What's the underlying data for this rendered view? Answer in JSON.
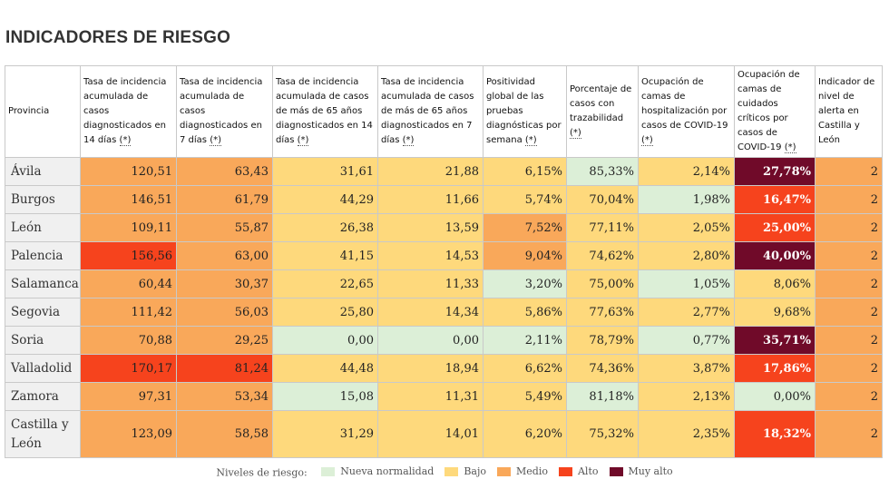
{
  "page": {
    "title": "INDICADORES DE RIESGO"
  },
  "colors": {
    "nueva_normalidad": "#dcefd7",
    "bajo": "#fed97c",
    "medio": "#f9a85a",
    "alto": "#f6431d",
    "muy_alto": "#700a29"
  },
  "table": {
    "columns": [
      {
        "label": "Provincia",
        "asterisk": ""
      },
      {
        "label": "Tasa de incidencia acumulada de casos diagnosticados en 14 días ",
        "asterisk": "(*)"
      },
      {
        "label": "Tasa de incidencia acumulada de casos diagnosticados en 7 días ",
        "asterisk": "(*)"
      },
      {
        "label": "Tasa de incidencia acumulada de casos de más de 65 años diagnosticados en 14 días ",
        "asterisk": "(*)"
      },
      {
        "label": "Tasa de incidencia acumulada de casos de más de 65 años diagnosticados en 7 días ",
        "asterisk": "(*)"
      },
      {
        "label": "Positividad global de las pruebas diagnósticas por semana ",
        "asterisk": "(*)"
      },
      {
        "label": "Porcentaje de casos con trazabilidad ",
        "asterisk": "(*)"
      },
      {
        "label": "Ocupación de camas de hospitalización por casos de COVID-19 ",
        "asterisk": "(*)"
      },
      {
        "label": "Ocupación de camas de cuidados críticos por casos de COVID-19 ",
        "asterisk": "(*)"
      },
      {
        "label": "Indicador de nivel de alerta en Castilla y León",
        "asterisk": ""
      }
    ],
    "rows": [
      {
        "provincia": "Ávila",
        "cells": [
          {
            "v": "120,51",
            "lvl": "medio"
          },
          {
            "v": "63,43",
            "lvl": "medio"
          },
          {
            "v": "31,61",
            "lvl": "bajo"
          },
          {
            "v": "21,88",
            "lvl": "bajo"
          },
          {
            "v": "6,15%",
            "lvl": "bajo"
          },
          {
            "v": "85,33%",
            "lvl": "nueva_normalidad"
          },
          {
            "v": "2,14%",
            "lvl": "bajo"
          },
          {
            "v": "27,78%",
            "lvl": "muy_alto"
          },
          {
            "v": "2",
            "lvl": "medio"
          }
        ]
      },
      {
        "provincia": "Burgos",
        "cells": [
          {
            "v": "146,51",
            "lvl": "medio"
          },
          {
            "v": "61,79",
            "lvl": "medio"
          },
          {
            "v": "44,29",
            "lvl": "bajo"
          },
          {
            "v": "11,66",
            "lvl": "bajo"
          },
          {
            "v": "5,74%",
            "lvl": "bajo"
          },
          {
            "v": "70,04%",
            "lvl": "bajo"
          },
          {
            "v": "1,98%",
            "lvl": "nueva_normalidad"
          },
          {
            "v": "16,47%",
            "lvl": "alto"
          },
          {
            "v": "2",
            "lvl": "medio"
          }
        ]
      },
      {
        "provincia": "León",
        "cells": [
          {
            "v": "109,11",
            "lvl": "medio"
          },
          {
            "v": "55,87",
            "lvl": "medio"
          },
          {
            "v": "26,38",
            "lvl": "bajo"
          },
          {
            "v": "13,59",
            "lvl": "bajo"
          },
          {
            "v": "7,52%",
            "lvl": "medio"
          },
          {
            "v": "77,11%",
            "lvl": "bajo"
          },
          {
            "v": "2,05%",
            "lvl": "bajo"
          },
          {
            "v": "25,00%",
            "lvl": "alto"
          },
          {
            "v": "2",
            "lvl": "medio"
          }
        ]
      },
      {
        "provincia": "Palencia",
        "cells": [
          {
            "v": "156,56",
            "lvl": "alto"
          },
          {
            "v": "63,00",
            "lvl": "medio"
          },
          {
            "v": "41,15",
            "lvl": "bajo"
          },
          {
            "v": "14,53",
            "lvl": "bajo"
          },
          {
            "v": "9,04%",
            "lvl": "medio"
          },
          {
            "v": "74,62%",
            "lvl": "bajo"
          },
          {
            "v": "2,80%",
            "lvl": "bajo"
          },
          {
            "v": "40,00%",
            "lvl": "muy_alto"
          },
          {
            "v": "2",
            "lvl": "medio"
          }
        ]
      },
      {
        "provincia": "Salamanca",
        "cells": [
          {
            "v": "60,44",
            "lvl": "medio"
          },
          {
            "v": "30,37",
            "lvl": "medio"
          },
          {
            "v": "22,65",
            "lvl": "bajo"
          },
          {
            "v": "11,33",
            "lvl": "bajo"
          },
          {
            "v": "3,20%",
            "lvl": "nueva_normalidad"
          },
          {
            "v": "75,00%",
            "lvl": "bajo"
          },
          {
            "v": "1,05%",
            "lvl": "nueva_normalidad"
          },
          {
            "v": "8,06%",
            "lvl": "bajo"
          },
          {
            "v": "2",
            "lvl": "medio"
          }
        ]
      },
      {
        "provincia": "Segovia",
        "cells": [
          {
            "v": "111,42",
            "lvl": "medio"
          },
          {
            "v": "56,03",
            "lvl": "medio"
          },
          {
            "v": "25,80",
            "lvl": "bajo"
          },
          {
            "v": "14,34",
            "lvl": "bajo"
          },
          {
            "v": "5,86%",
            "lvl": "bajo"
          },
          {
            "v": "77,63%",
            "lvl": "bajo"
          },
          {
            "v": "2,77%",
            "lvl": "bajo"
          },
          {
            "v": "9,68%",
            "lvl": "bajo"
          },
          {
            "v": "2",
            "lvl": "medio"
          }
        ]
      },
      {
        "provincia": "Soria",
        "cells": [
          {
            "v": "70,88",
            "lvl": "medio"
          },
          {
            "v": "29,25",
            "lvl": "medio"
          },
          {
            "v": "0,00",
            "lvl": "nueva_normalidad"
          },
          {
            "v": "0,00",
            "lvl": "nueva_normalidad"
          },
          {
            "v": "2,11%",
            "lvl": "nueva_normalidad"
          },
          {
            "v": "78,79%",
            "lvl": "bajo"
          },
          {
            "v": "0,77%",
            "lvl": "nueva_normalidad"
          },
          {
            "v": "35,71%",
            "lvl": "muy_alto"
          },
          {
            "v": "2",
            "lvl": "medio"
          }
        ]
      },
      {
        "provincia": "Valladolid",
        "cells": [
          {
            "v": "170,17",
            "lvl": "alto"
          },
          {
            "v": "81,24",
            "lvl": "alto"
          },
          {
            "v": "44,48",
            "lvl": "bajo"
          },
          {
            "v": "18,94",
            "lvl": "bajo"
          },
          {
            "v": "6,62%",
            "lvl": "bajo"
          },
          {
            "v": "74,36%",
            "lvl": "bajo"
          },
          {
            "v": "3,87%",
            "lvl": "bajo"
          },
          {
            "v": "17,86%",
            "lvl": "alto"
          },
          {
            "v": "2",
            "lvl": "medio"
          }
        ]
      },
      {
        "provincia": "Zamora",
        "cells": [
          {
            "v": "97,31",
            "lvl": "medio"
          },
          {
            "v": "53,34",
            "lvl": "medio"
          },
          {
            "v": "15,08",
            "lvl": "nueva_normalidad"
          },
          {
            "v": "11,31",
            "lvl": "bajo"
          },
          {
            "v": "5,49%",
            "lvl": "bajo"
          },
          {
            "v": "81,18%",
            "lvl": "nueva_normalidad"
          },
          {
            "v": "2,13%",
            "lvl": "bajo"
          },
          {
            "v": "0,00%",
            "lvl": "nueva_normalidad"
          },
          {
            "v": "2",
            "lvl": "medio"
          }
        ]
      },
      {
        "provincia": "Castilla y León",
        "cells": [
          {
            "v": "123,09",
            "lvl": "medio"
          },
          {
            "v": "58,58",
            "lvl": "medio"
          },
          {
            "v": "31,29",
            "lvl": "bajo"
          },
          {
            "v": "14,01",
            "lvl": "bajo"
          },
          {
            "v": "6,20%",
            "lvl": "bajo"
          },
          {
            "v": "75,32%",
            "lvl": "bajo"
          },
          {
            "v": "2,35%",
            "lvl": "bajo"
          },
          {
            "v": "18,32%",
            "lvl": "alto"
          },
          {
            "v": "2",
            "lvl": "medio"
          }
        ]
      }
    ]
  },
  "legend": {
    "label": "Niveles de riesgo:",
    "items": [
      {
        "key": "nueva_normalidad",
        "label": "Nueva normalidad"
      },
      {
        "key": "bajo",
        "label": "Bajo"
      },
      {
        "key": "medio",
        "label": "Medio"
      },
      {
        "key": "alto",
        "label": "Alto"
      },
      {
        "key": "muy_alto",
        "label": "Muy alto"
      }
    ]
  }
}
